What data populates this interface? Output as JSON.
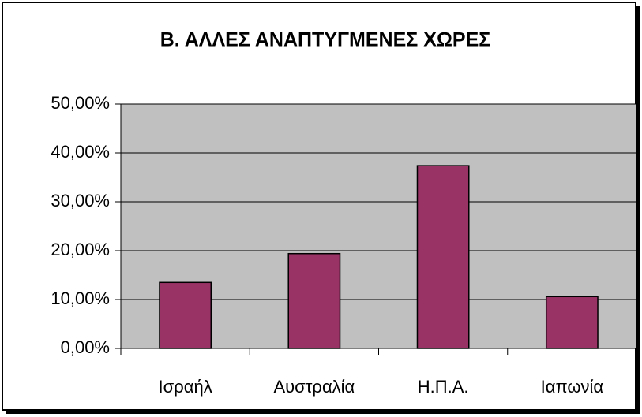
{
  "chart_data": {
    "type": "bar",
    "title": "Β. ΑΛΛΕΣ ΑΝΑΠΤΥΓΜΕΝΕΣ ΧΩΡΕΣ",
    "categories": [
      "Ισραήλ",
      "Αυστραλία",
      "Η.Π.Α.",
      "Ιαπωνία"
    ],
    "values": [
      13.5,
      19.4,
      37.4,
      10.6
    ],
    "color": "#993366",
    "ylim": [
      0,
      50
    ],
    "yticks": [
      {
        "value": 0,
        "label": "0,00%"
      },
      {
        "value": 10,
        "label": "10,00%"
      },
      {
        "value": 20,
        "label": "20,00%"
      },
      {
        "value": 30,
        "label": "30,00%"
      },
      {
        "value": 40,
        "label": "40,00%"
      },
      {
        "value": 50,
        "label": "50,00%"
      }
    ],
    "grid": true
  }
}
